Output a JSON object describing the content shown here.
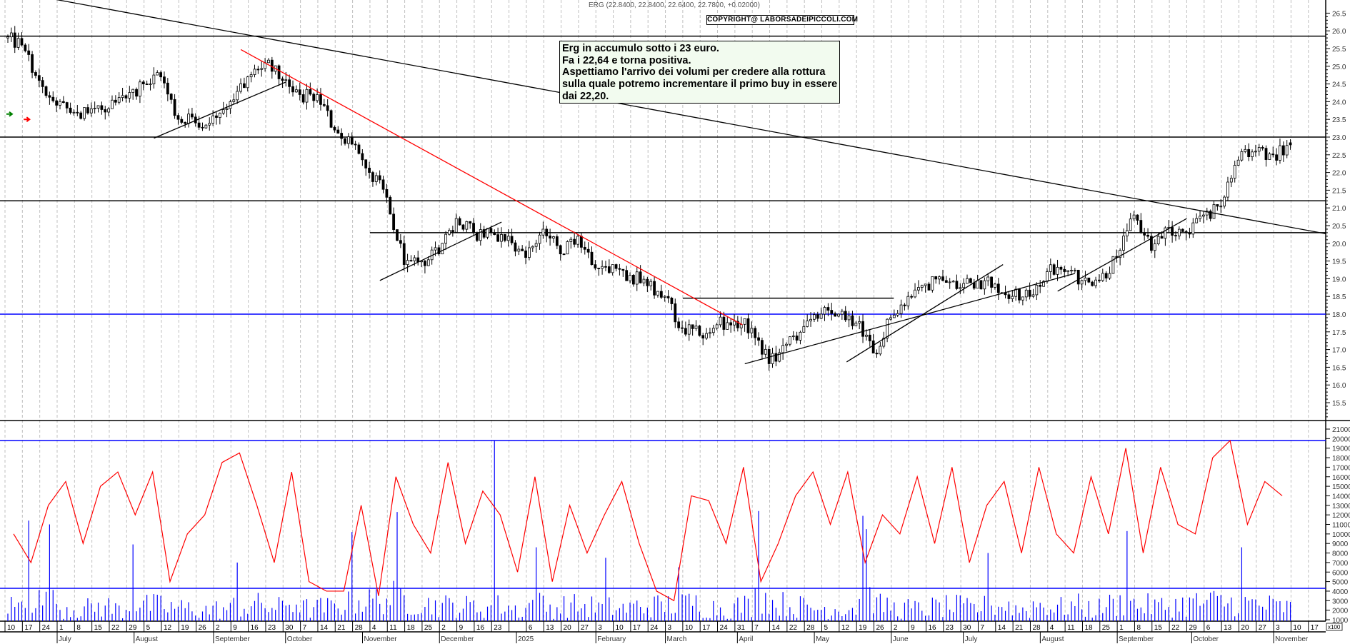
{
  "header": {
    "quote": "ERG (22.8400, 22.8400, 22.6400, 22.7800, +0.02000)",
    "copyright": "COPYRIGHT@ LABORSADEIPICCOLI.COM"
  },
  "annotation": {
    "lines": [
      "Erg in accumulo sotto i 23 euro.",
      "Fa i 22,64 e torna positiva.",
      "Aspettiamo l'arrivo dei volumi per credere alla rottura",
      "sulla quale potremo incrementare il primo buy in essere",
      "dai 22,20."
    ]
  },
  "chart_data": [
    {
      "type": "candlestick",
      "title": "ERG",
      "ylim": [
        15.0,
        26.9
      ],
      "y_ticks": [
        "15.5",
        "16.0",
        "16.5",
        "17.0",
        "17.5",
        "18.0",
        "18.5",
        "19.0",
        "19.5",
        "20.0",
        "20.5",
        "21.0",
        "21.5",
        "22.0",
        "22.5",
        "23.0",
        "23.5",
        "24.0",
        "24.5",
        "25.0",
        "25.5",
        "26.0",
        "26.5"
      ],
      "grid": "vertical dashed weekly",
      "last": {
        "open": 22.84,
        "high": 22.84,
        "low": 22.64,
        "close": 22.78,
        "change": 0.02
      },
      "weekly_x": [
        "2024-06-10",
        "2024-06-17",
        "2024-06-24",
        "2024-07-01",
        "2024-07-08",
        "2024-07-15",
        "2024-07-22",
        "2024-07-29",
        "2024-08-05",
        "2024-08-12",
        "2024-08-19",
        "2024-08-26",
        "2024-09-02",
        "2024-09-09",
        "2024-09-16",
        "2024-09-23",
        "2024-09-30",
        "2024-10-07",
        "2024-10-14",
        "2024-10-21",
        "2024-10-28",
        "2024-11-04",
        "2024-11-11",
        "2024-11-18",
        "2024-11-25",
        "2024-12-02",
        "2024-12-09",
        "2024-12-16",
        "2024-12-23",
        "2024-12-30",
        "2025-01-06",
        "2025-01-13",
        "2025-01-20",
        "2025-01-27",
        "2025-02-03",
        "2025-02-10",
        "2025-02-17",
        "2025-02-24",
        "2025-03-03",
        "2025-03-10",
        "2025-03-17",
        "2025-03-24",
        "2025-03-31",
        "2025-04-07",
        "2025-04-14",
        "2025-04-21",
        "2025-04-28",
        "2025-05-05",
        "2025-05-12",
        "2025-05-19",
        "2025-05-26",
        "2025-06-02",
        "2025-06-09",
        "2025-06-16",
        "2025-06-23",
        "2025-06-30",
        "2025-07-07",
        "2025-07-14",
        "2025-07-21",
        "2025-07-28",
        "2025-08-04",
        "2025-08-11",
        "2025-08-18",
        "2025-08-25",
        "2025-09-01",
        "2025-09-08",
        "2025-09-15",
        "2025-09-22",
        "2025-09-29",
        "2025-10-06",
        "2025-10-13",
        "2025-10-20",
        "2025-10-27",
        "2025-11-03"
      ],
      "weekly_close": [
        25.6,
        24.6,
        23.9,
        23.7,
        23.8,
        23.8,
        24.1,
        24.5,
        24.7,
        23.5,
        23.4,
        23.6,
        24.0,
        24.7,
        25.1,
        24.6,
        24.2,
        24.2,
        23.2,
        22.8,
        22.0,
        21.3,
        19.4,
        19.5,
        19.7,
        20.7,
        20.3,
        20.3,
        20.2,
        19.6,
        20.4,
        19.7,
        20.2,
        19.3,
        19.4,
        19.1,
        18.8,
        18.5,
        17.6,
        17.4,
        17.7,
        17.8,
        17.6,
        16.6,
        17.15,
        17.65,
        18.0,
        18.0,
        17.75,
        16.9,
        17.9,
        18.5,
        18.85,
        18.95,
        18.75,
        18.95,
        18.85,
        18.5,
        18.5,
        19.2,
        19.2,
        18.95,
        18.95,
        19.6,
        20.8,
        19.8,
        20.45,
        20.3,
        20.8,
        21.05,
        22.35,
        22.6,
        22.5,
        22.78
      ],
      "first_open": 25.8,
      "horizontal_lines": [
        {
          "price": 25.85,
          "color": "#000000"
        },
        {
          "price": 23.0,
          "color": "#000000"
        },
        {
          "price": 21.2,
          "color": "#000000"
        },
        {
          "price": 18.0,
          "color": "#0000ff"
        },
        {
          "price": 20.3,
          "from": "2024-11-04",
          "color": "#000000"
        },
        {
          "price": 18.45,
          "from": "2025-03-10",
          "to": "2025-06-03",
          "color": "#000000"
        }
      ],
      "trend_lines": [
        {
          "from": [
            "2024-06-27",
            26.93
          ],
          "to": [
            "2025-11-24",
            20.27
          ],
          "color": "#000000"
        },
        {
          "from": [
            "2024-09-13",
            25.47
          ],
          "to": [
            "2025-04-03",
            17.7
          ],
          "color": "#ff0000"
        },
        {
          "from": [
            "2024-08-09",
            22.97
          ],
          "to": [
            "2024-10-01",
            24.55
          ],
          "color": "#000000"
        },
        {
          "from": [
            "2024-11-08",
            18.95
          ],
          "to": [
            "2024-12-27",
            20.6
          ],
          "color": "#000000"
        },
        {
          "from": [
            "2025-04-04",
            16.6
          ],
          "to": [
            "2025-08-15",
            19.15
          ],
          "color": "#000000"
        },
        {
          "from": [
            "2025-05-15",
            16.65
          ],
          "to": [
            "2025-07-17",
            19.4
          ],
          "color": "#000000"
        },
        {
          "from": [
            "2025-08-08",
            18.65
          ],
          "to": [
            "2025-09-29",
            20.7
          ],
          "color": "#000000"
        }
      ],
      "markers": [
        {
          "date": "2024-06-12",
          "price": 23.65,
          "color": "#008000",
          "icon": "arrow-right"
        },
        {
          "date": "2024-06-19",
          "price": 23.5,
          "color": "#ff0000",
          "icon": "arrow-right"
        }
      ]
    },
    {
      "type": "bar+line",
      "unit_label": "x100",
      "ylim": [
        0,
        21500
      ],
      "y_ticks": [
        "1000",
        "2000",
        "3000",
        "4000",
        "5000",
        "6000",
        "7000",
        "8000",
        "9000",
        "10000",
        "11000",
        "12000",
        "13000",
        "14000",
        "15000",
        "16000",
        "17000",
        "18000",
        "19000",
        "20000",
        "21000"
      ],
      "bar_color": "#0000ff",
      "line_color": "#ff0000",
      "horizontal_lines": [
        {
          "value": 19800,
          "color": "#0000ff"
        },
        {
          "value": 4300,
          "color": "#0000ff"
        }
      ],
      "weekly_volume_avg": [
        2600,
        3200,
        3000,
        2400,
        2300,
        2500,
        2200,
        2800,
        2600,
        2400,
        2300,
        2100,
        2200,
        2500,
        2700,
        2400,
        2900,
        2300,
        2400,
        2800,
        3100,
        3300,
        3600,
        3000,
        2700,
        2600,
        2500,
        2400,
        2600,
        2200,
        2800,
        2400,
        2600,
        2500,
        2400,
        2300,
        2500,
        2600,
        2700,
        2900,
        2400,
        2300,
        2600,
        3500,
        2800,
        2500,
        2300,
        2300,
        2400,
        3400,
        2600,
        2300,
        2200,
        2400,
        2500,
        2300,
        2500,
        2600,
        2200,
        2700,
        2400,
        2600,
        2300,
        2700,
        2800,
        2600,
        2500,
        2700,
        2900,
        3000,
        2900,
        2800,
        2600,
        2400
      ],
      "volume_spikes": [
        {
          "date": "2024-06-18",
          "value": 11400
        },
        {
          "date": "2024-06-26",
          "value": 11000
        },
        {
          "date": "2024-07-30",
          "value": 8900
        },
        {
          "date": "2024-09-10",
          "value": 7000
        },
        {
          "date": "2024-10-25",
          "value": 10200
        },
        {
          "date": "2024-11-13",
          "value": 12300
        },
        {
          "date": "2024-12-23",
          "value": 19800
        },
        {
          "date": "2025-01-08",
          "value": 8600
        },
        {
          "date": "2025-02-05",
          "value": 7500
        },
        {
          "date": "2025-03-06",
          "value": 6500
        },
        {
          "date": "2025-04-08",
          "value": 12400
        },
        {
          "date": "2025-05-20",
          "value": 11900
        },
        {
          "date": "2025-05-21",
          "value": 10500
        },
        {
          "date": "2025-07-09",
          "value": 8000
        },
        {
          "date": "2025-09-03",
          "value": 10300
        },
        {
          "date": "2025-10-20",
          "value": 8600
        }
      ],
      "weekly_line": [
        10000,
        7000,
        13000,
        15500,
        9000,
        15000,
        16500,
        12000,
        16500,
        5000,
        10000,
        12000,
        17500,
        18500,
        13000,
        7000,
        16500,
        5000,
        4000,
        4000,
        13000,
        3500,
        16000,
        11000,
        8000,
        17500,
        9000,
        14500,
        12000,
        6000,
        16000,
        5000,
        13000,
        8000,
        12000,
        15500,
        9000,
        4000,
        3000,
        14000,
        13500,
        9000,
        17000,
        5000,
        9000,
        14000,
        16500,
        11000,
        16500,
        7000,
        12000,
        10000,
        16000,
        9000,
        17000,
        7000,
        13000,
        15500,
        8000,
        17000,
        10000,
        8000,
        16000,
        10000,
        19000,
        8000,
        17000,
        11000,
        10000,
        18000,
        19800,
        11000,
        15500,
        14000
      ]
    }
  ],
  "x_axis": {
    "day_ticks": [
      "10",
      "17",
      "24",
      "1",
      "8",
      "15",
      "22",
      "29",
      "5",
      "12",
      "19",
      "26",
      "2",
      "9",
      "16",
      "23",
      "30",
      "7",
      "14",
      "21",
      "28",
      "4",
      "11",
      "18",
      "25",
      "2",
      "9",
      "16",
      "23",
      "",
      "6",
      "13",
      "20",
      "27",
      "3",
      "10",
      "17",
      "24",
      "3",
      "10",
      "17",
      "24",
      "31",
      "7",
      "14",
      "22",
      "28",
      "5",
      "12",
      "19",
      "26",
      "2",
      "9",
      "16",
      "23",
      "30",
      "7",
      "14",
      "21",
      "28",
      "4",
      "11",
      "18",
      "25",
      "1",
      "8",
      "15",
      "22",
      "29",
      "6",
      "13",
      "20",
      "27",
      "3",
      "10",
      "17"
    ],
    "months": [
      {
        "label": "July",
        "date": "2024-07-01"
      },
      {
        "label": "August",
        "date": "2024-08-01"
      },
      {
        "label": "September",
        "date": "2024-09-02"
      },
      {
        "label": "October",
        "date": "2024-10-01"
      },
      {
        "label": "November",
        "date": "2024-11-01"
      },
      {
        "label": "December",
        "date": "2024-12-02"
      },
      {
        "label": "2025",
        "date": "2025-01-02"
      },
      {
        "label": "February",
        "date": "2025-02-03"
      },
      {
        "label": "March",
        "date": "2025-03-03"
      },
      {
        "label": "April",
        "date": "2025-04-01"
      },
      {
        "label": "May",
        "date": "2025-05-02"
      },
      {
        "label": "June",
        "date": "2025-06-02"
      },
      {
        "label": "July",
        "date": "2025-07-01"
      },
      {
        "label": "August",
        "date": "2025-08-01"
      },
      {
        "label": "September",
        "date": "2025-09-01"
      },
      {
        "label": "October",
        "date": "2025-10-01"
      },
      {
        "label": "November",
        "date": "2025-11-03"
      }
    ]
  }
}
